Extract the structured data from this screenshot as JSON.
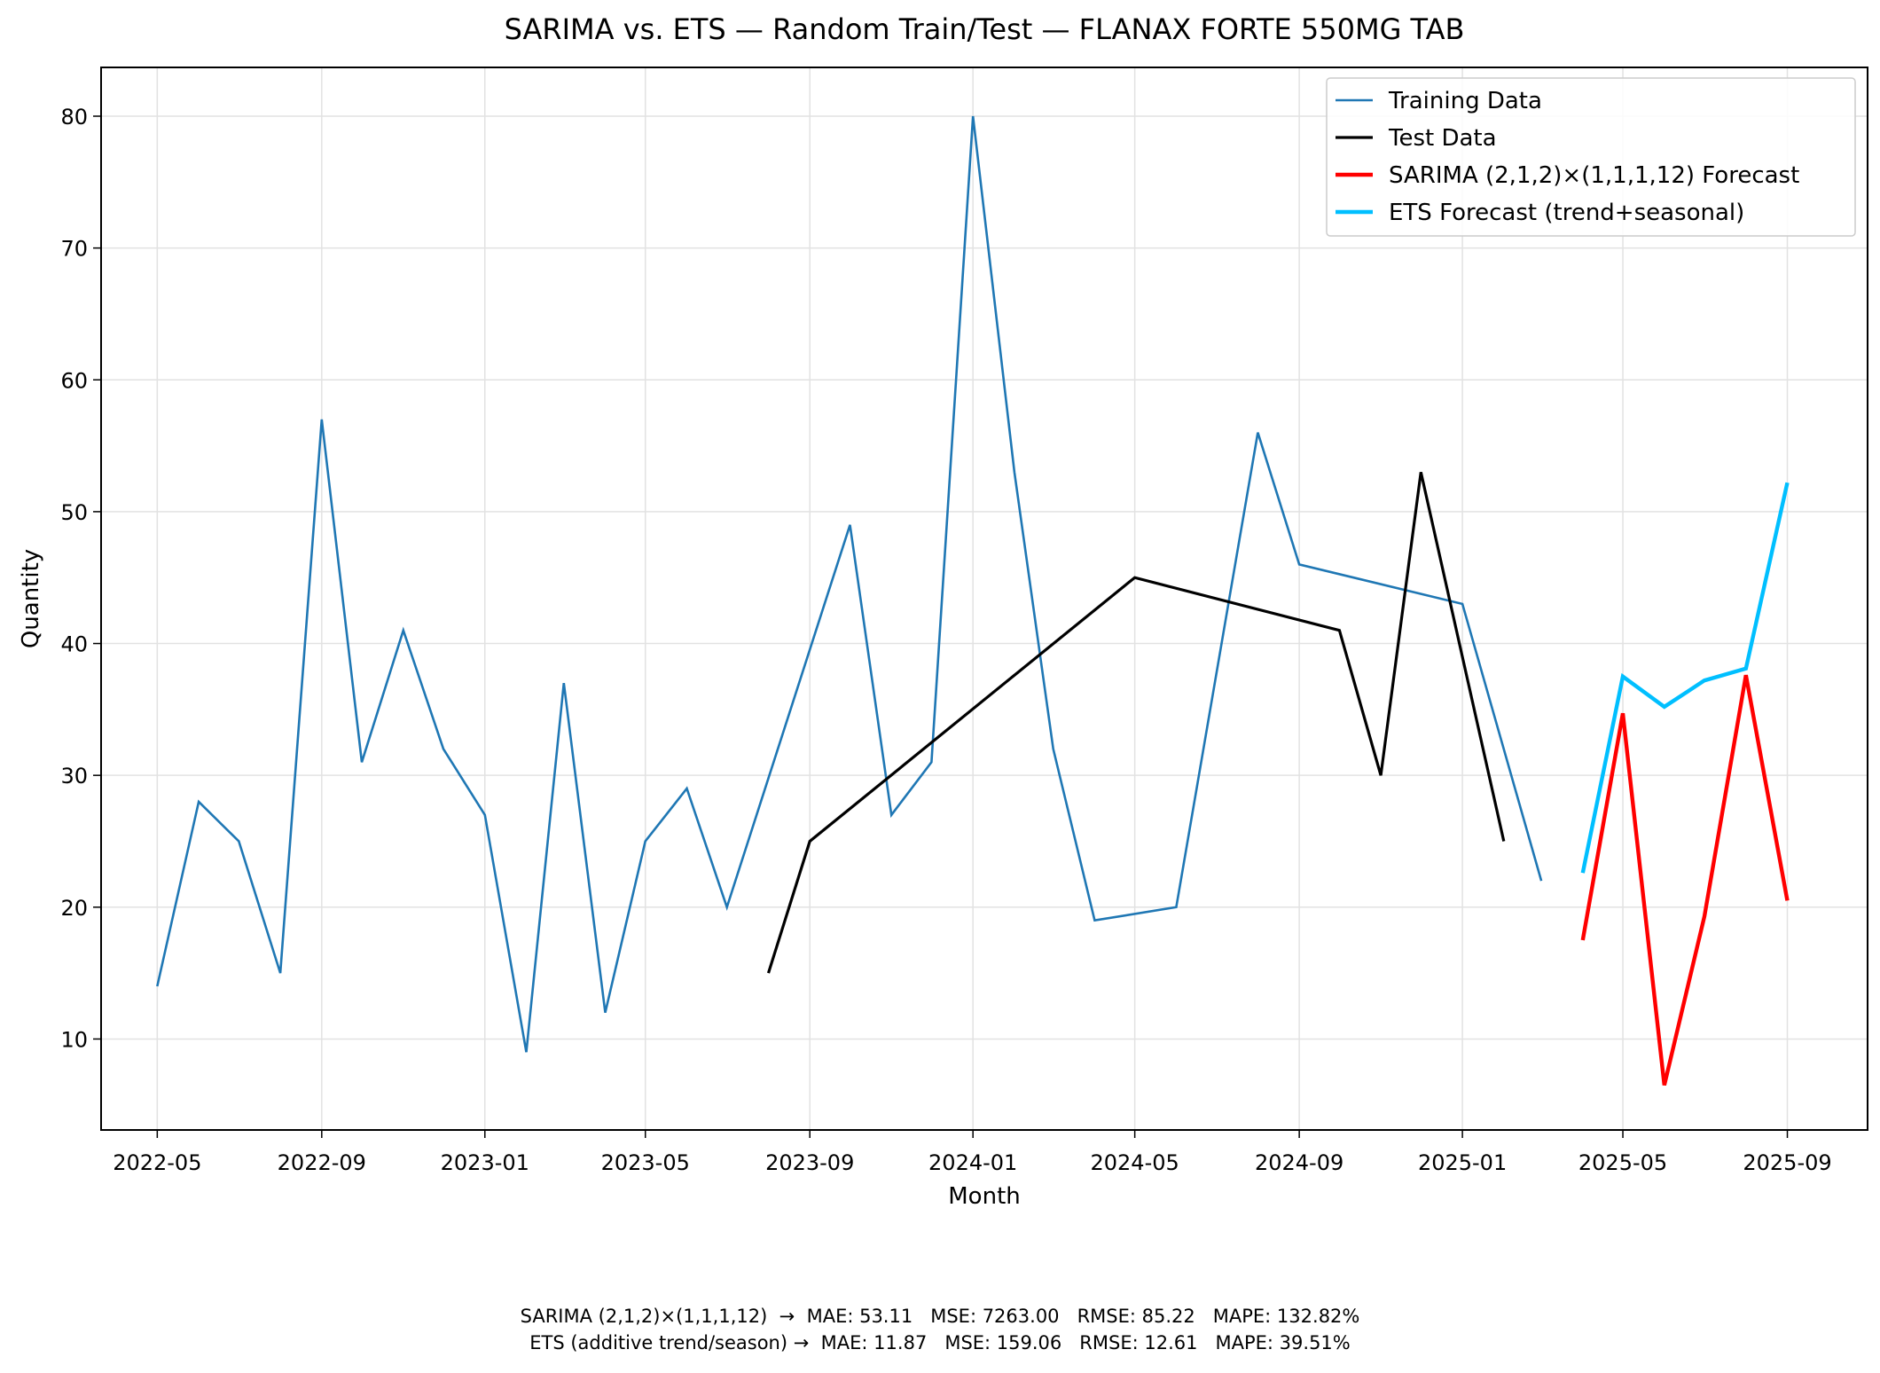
{
  "chart_data": {
    "type": "line",
    "title": "SARIMA vs. ETS — Random Train/Test — FLANAX FORTE 550MG TAB",
    "xlabel": "Month",
    "ylabel": "Quantity",
    "xlim": [
      "2022-03-20",
      "2025-10-31"
    ],
    "ylim": [
      3.1,
      83.7
    ],
    "yticks": [
      10,
      20,
      30,
      40,
      50,
      60,
      70,
      80
    ],
    "xticks": [
      "2022-05",
      "2022-09",
      "2023-01",
      "2023-05",
      "2023-09",
      "2024-01",
      "2024-05",
      "2024-09",
      "2025-01",
      "2025-05",
      "2025-09"
    ],
    "grid": true,
    "legend_position": "top-right",
    "series": [
      {
        "name": "Training Data",
        "color": "#1f77b4",
        "x": [
          "2022-05",
          "2022-06",
          "2022-07",
          "2022-08",
          "2022-09",
          "2022-10",
          "2022-11",
          "2022-12",
          "2023-01",
          "2023-02",
          "2023-03",
          "2023-04",
          "2023-05",
          "2023-06",
          "2023-07",
          "2023-10",
          "2023-11",
          "2023-12",
          "2024-01",
          "2024-02",
          "2024-03",
          "2024-04",
          "2024-06",
          "2024-08",
          "2024-09",
          "2025-01",
          "2025-03"
        ],
        "y": [
          14,
          28,
          25,
          15,
          57,
          31,
          41,
          32,
          27,
          9,
          37,
          12,
          25,
          29,
          20,
          49,
          27,
          31,
          80,
          53,
          32,
          19,
          20,
          56,
          46,
          43,
          22
        ]
      },
      {
        "name": "Test Data",
        "color": "#000000",
        "x": [
          "2023-08",
          "2023-09",
          "2024-05",
          "2024-10",
          "2024-11",
          "2024-12",
          "2025-02"
        ],
        "y": [
          15,
          25,
          45,
          41,
          30,
          53,
          25
        ]
      },
      {
        "name": "SARIMA (2,1,2)×(1,1,1,12) Forecast",
        "color": "#ff0000",
        "x": [
          "2025-04",
          "2025-05",
          "2025-06",
          "2025-07",
          "2025-08",
          "2025-09"
        ],
        "y": [
          17.5,
          34.7,
          6.5,
          19.3,
          37.6,
          20.5
        ]
      },
      {
        "name": "ETS Forecast (trend+seasonal)",
        "color": "#00bfff",
        "x": [
          "2025-04",
          "2025-05",
          "2025-06",
          "2025-07",
          "2025-08",
          "2025-09"
        ],
        "y": [
          22.6,
          37.5,
          35.2,
          37.2,
          38.1,
          52.2
        ]
      }
    ]
  },
  "footer": {
    "line1": "SARIMA (2,1,2)×(1,1,1,12)  →  MAE: 53.11   MSE: 7263.00   RMSE: 85.22   MAPE: 132.82%",
    "line2": "ETS (additive trend/season) →  MAE: 11.87   MSE: 159.06   RMSE: 12.61   MAPE: 39.51%"
  }
}
